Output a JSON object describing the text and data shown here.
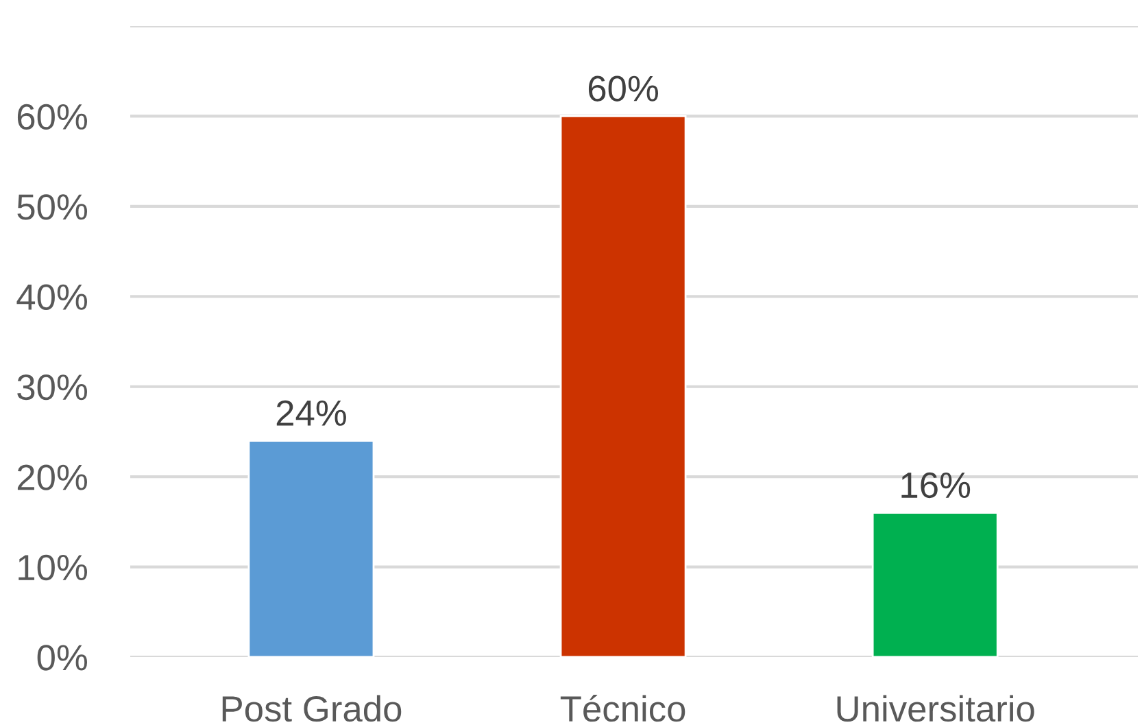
{
  "chart_data": {
    "type": "bar",
    "categories": [
      "Post Grado",
      "Técnico",
      "Universitario"
    ],
    "values": [
      24,
      60,
      16
    ],
    "colors": [
      "#5b9bd5",
      "#cc3300",
      "#00b050"
    ],
    "value_labels": [
      "24%",
      "60%",
      "16%"
    ],
    "ylim": [
      0,
      70
    ],
    "yticks": [
      {
        "value": 0,
        "label": "0%"
      },
      {
        "value": 10,
        "label": "10%"
      },
      {
        "value": 20,
        "label": "20%"
      },
      {
        "value": 30,
        "label": "30%"
      },
      {
        "value": 40,
        "label": "40%"
      },
      {
        "value": 50,
        "label": "50%"
      },
      {
        "value": 60,
        "label": "60%"
      },
      {
        "value": 70,
        "label": null
      }
    ],
    "grid": "y",
    "legend": false
  }
}
